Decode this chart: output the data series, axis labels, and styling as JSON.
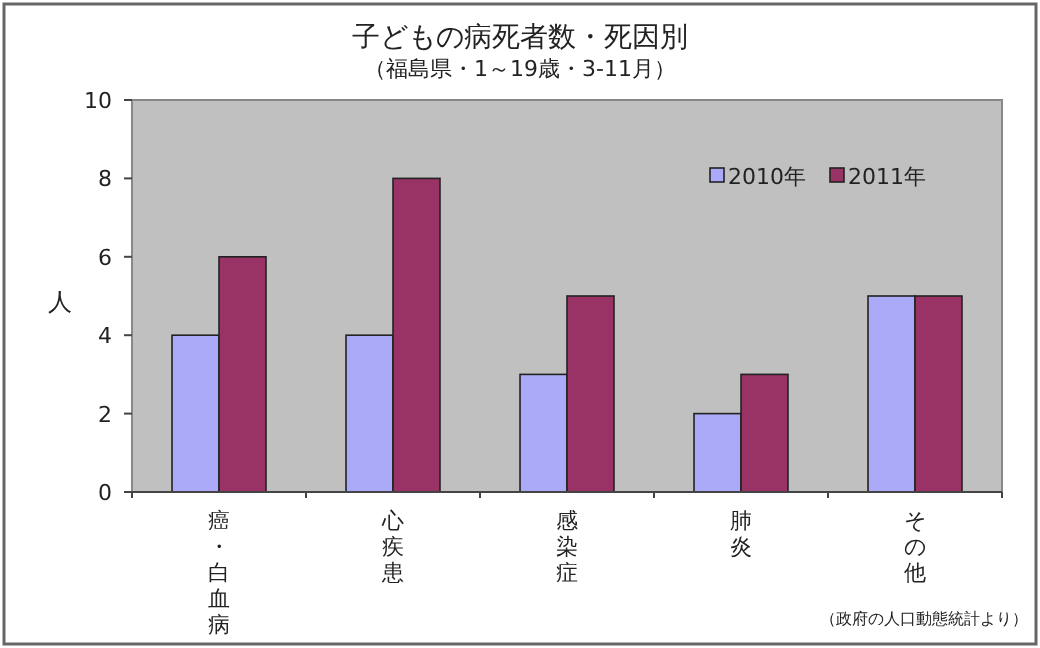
{
  "chart_data": {
    "type": "bar",
    "title": "子どもの病死者数・死因別",
    "subtitle": "（福島県・1～19歳・3-11月）",
    "ylabel": "人",
    "categories": [
      "癌・白血病",
      "心疾患",
      "感染症",
      "肺炎",
      "その他"
    ],
    "series": [
      {
        "name": "2010年",
        "color": "#aaaaf8",
        "values": [
          4,
          4,
          3,
          2,
          5
        ]
      },
      {
        "name": "2011年",
        "color": "#993366",
        "values": [
          6,
          8,
          5,
          3,
          5
        ]
      }
    ],
    "ylim": [
      0,
      10
    ],
    "yticks": [
      0,
      2,
      4,
      6,
      8,
      10
    ],
    "legend": "top right",
    "annotations": [
      "（政府の人口動態統計より）"
    ]
  }
}
